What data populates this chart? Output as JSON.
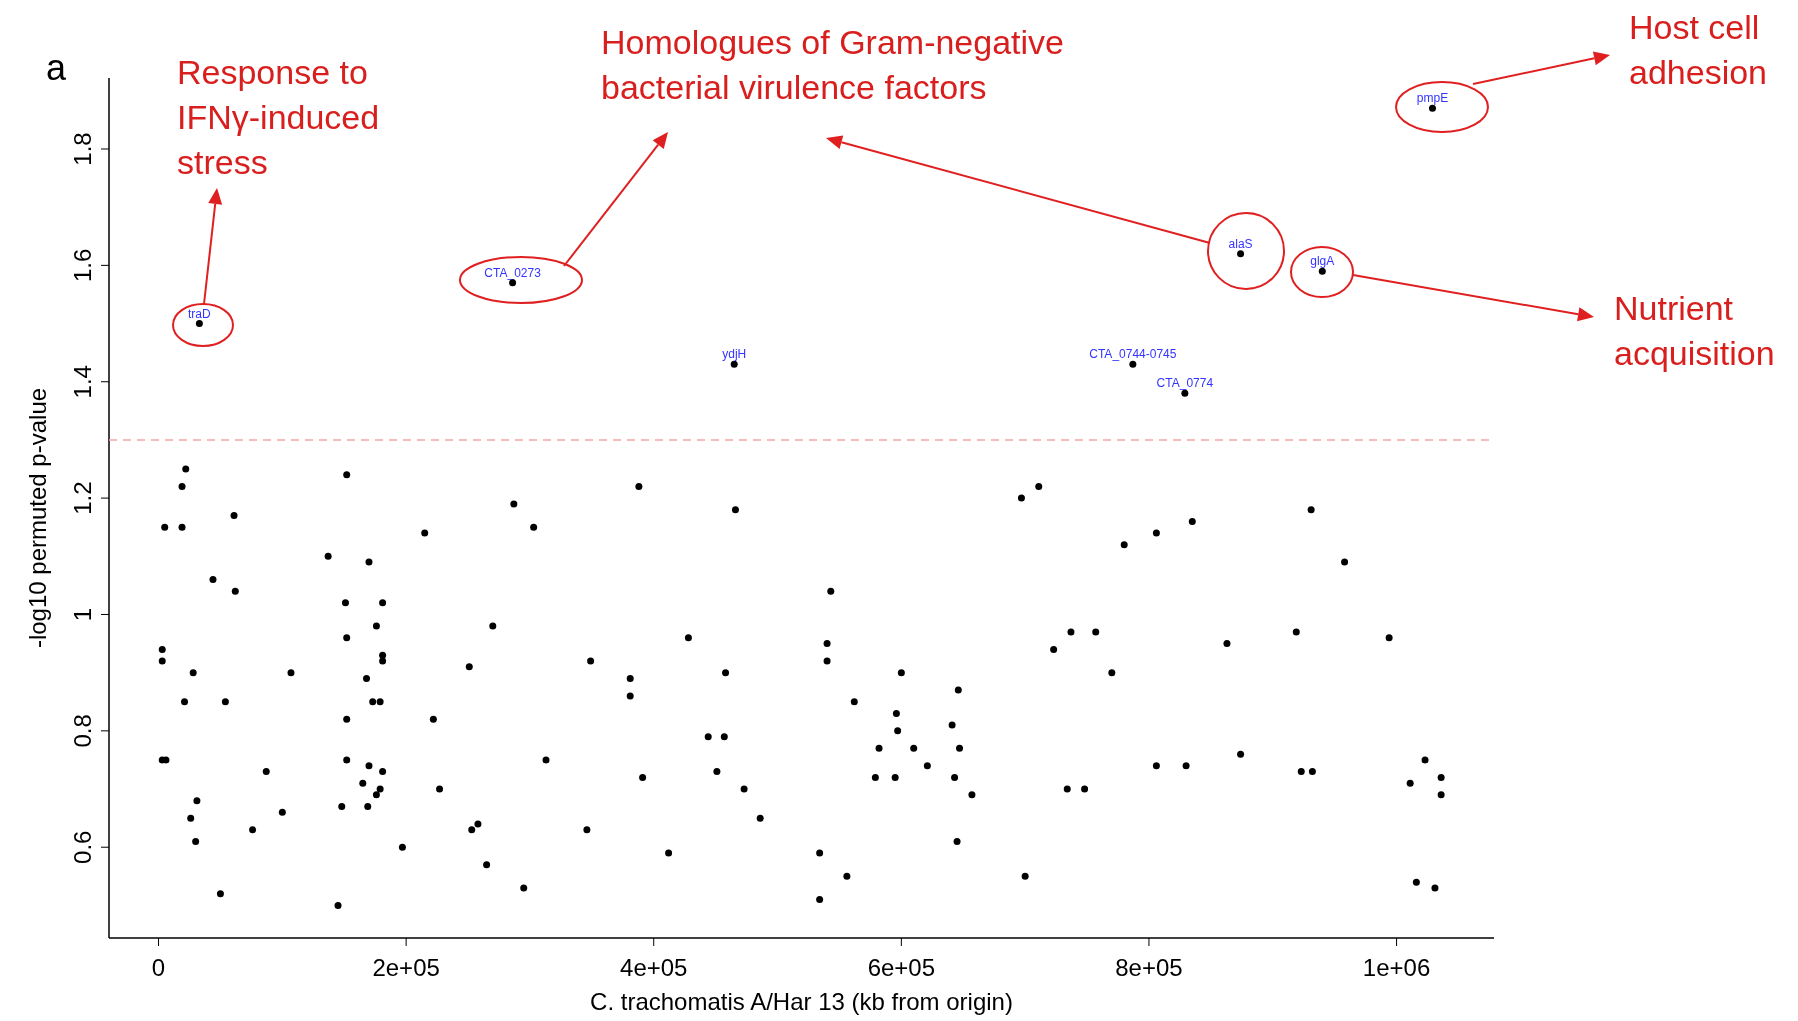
{
  "chart_data": {
    "type": "scatter",
    "title": "a",
    "xlabel": "C. trachomatis A/Har 13 (kb from origin)",
    "ylabel": "-log10 permuted p-value",
    "xlim": [
      -40000,
      1078700
    ],
    "ylim": [
      0.444,
      1.922
    ],
    "xticks": [
      0,
      {
        "value": 200000,
        "label": "2e+05"
      },
      {
        "value": 400000,
        "label": "4e+05"
      },
      {
        "value": 600000,
        "label": "6e+05"
      },
      {
        "value": 800000,
        "label": "8e+05"
      },
      {
        "value": 1000000,
        "label": "1e+06"
      }
    ],
    "yticks": [
      0.6,
      0.8,
      1,
      1.2,
      1.4,
      1.6,
      1.8
    ],
    "marker": "circle",
    "ref_lines": [
      {
        "axis": "y",
        "value": 1.3,
        "color": "#f4a6a6",
        "line_style": "dashed"
      }
    ],
    "annotations": [
      "Response to\nIFNγ-induced\nstress",
      "Homologues of Gram-negative\nbacterial virulence factors",
      "Host cell\nadhesion",
      "Nutrient\nacquisition",
      {
        "text": "traD",
        "x": 33000,
        "y": 1.5
      },
      {
        "text": "CTA_0273",
        "x": 286000,
        "y": 1.57
      },
      {
        "text": "ydjH",
        "x": 465000,
        "y": 1.43
      },
      {
        "text": "CTA_0744-0745",
        "x": 787000,
        "y": 1.43
      },
      {
        "text": "CTA_0774",
        "x": 829000,
        "y": 1.38
      },
      {
        "text": "alaS",
        "x": 874000,
        "y": 1.62
      },
      {
        "text": "glgA",
        "x": 940000,
        "y": 1.59
      },
      {
        "text": "pmpE",
        "x": 1029000,
        "y": 1.87
      }
    ],
    "series": [
      {
        "color": "#000000",
        "x": [
          3000,
          6000,
          5000,
          3000,
          3000,
          19000,
          22000,
          19000,
          21000,
          28000,
          26000,
          30000,
          31000,
          33000,
          44000,
          50000,
          54000,
          61000,
          62000,
          76000,
          87000,
          100000,
          107000,
          137000,
          145000,
          148000,
          152000,
          151000,
          152000,
          152000,
          152000,
          165000,
          169000,
          170000,
          168000,
          170000,
          173000,
          176000,
          176000,
          179000,
          181000,
          181000,
          181000,
          181000,
          179000,
          197000,
          215000,
          222000,
          227000,
          251000,
          253000,
          258000,
          265000,
          270000,
          286000,
          287000,
          295000,
          303000,
          313000,
          346000,
          349000,
          381000,
          381000,
          388000,
          391000,
          412000,
          428000,
          444000,
          451000,
          457000,
          458000,
          465000,
          466000,
          473000,
          486000,
          534000,
          534000,
          540000,
          540000,
          543000,
          556000,
          562000,
          579000,
          582000,
          595000,
          596000,
          597000,
          600000,
          610000,
          621000,
          641000,
          646000,
          643000,
          645000,
          647000,
          657000,
          697000,
          700000,
          711000,
          723000,
          734000,
          737000,
          748000,
          757000,
          770000,
          780000,
          787000,
          806000,
          806000,
          829000,
          830000,
          835000,
          863000,
          874000,
          874000,
          919000,
          923000,
          931000,
          932000,
          940000,
          958000,
          994000,
          1011000,
          1016000,
          1023000,
          1031000,
          1036000,
          1036000,
          1029000
        ],
        "values": [
          0.75,
          0.75,
          1.15,
          0.94,
          0.92,
          1.22,
          1.25,
          1.15,
          0.85,
          0.9,
          0.65,
          0.61,
          0.68,
          1.5,
          1.06,
          0.52,
          0.85,
          1.17,
          1.04,
          0.63,
          0.73,
          0.66,
          0.9,
          1.1,
          0.5,
          0.67,
          1.24,
          1.02,
          0.96,
          0.82,
          0.75,
          0.71,
          0.67,
          1.09,
          0.89,
          0.74,
          0.85,
          0.69,
          0.98,
          0.85,
          0.92,
          0.93,
          1.02,
          0.73,
          0.7,
          0.6,
          1.14,
          0.82,
          0.7,
          0.91,
          0.63,
          0.64,
          0.57,
          0.98,
          1.57,
          1.19,
          0.53,
          1.15,
          0.75,
          0.63,
          0.92,
          0.89,
          0.86,
          1.22,
          0.72,
          0.59,
          0.96,
          0.79,
          0.73,
          0.79,
          0.9,
          1.43,
          1.18,
          0.7,
          0.65,
          0.59,
          0.51,
          0.95,
          0.92,
          1.04,
          0.55,
          0.85,
          0.72,
          0.77,
          0.72,
          0.83,
          0.8,
          0.9,
          0.77,
          0.74,
          0.81,
          0.87,
          0.72,
          0.61,
          0.77,
          0.69,
          1.2,
          0.55,
          1.22,
          0.94,
          0.7,
          0.97,
          0.7,
          0.97,
          0.9,
          1.12,
          1.43,
          1.14,
          0.74,
          1.38,
          0.74,
          1.16,
          0.95,
          1.62,
          0.76,
          0.97,
          0.73,
          1.18,
          0.73,
          1.59,
          1.09,
          0.96,
          0.71,
          0.54,
          0.75,
          0.53,
          0.72,
          0.69,
          1.87
        ]
      }
    ]
  }
}
